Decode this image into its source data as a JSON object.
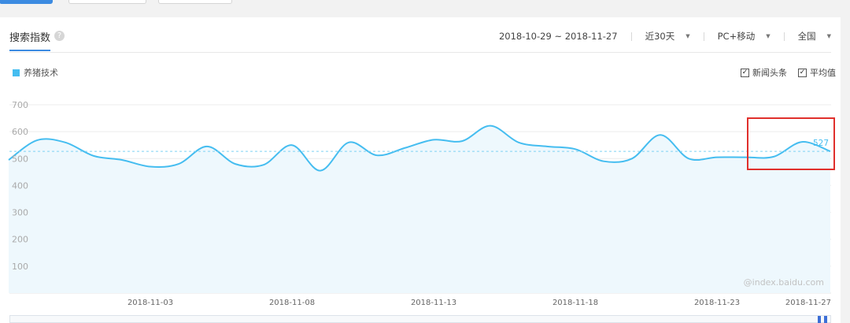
{
  "header": {
    "title": "搜索指数",
    "help_icon_glyph": "?",
    "date_range": "2018-10-29 ~ 2018-11-27",
    "period": "近30天",
    "device": "PC+移动",
    "region": "全国"
  },
  "legend": {
    "label": "养猪技术",
    "color": "#45bdf0"
  },
  "options": [
    {
      "label": "新闻头条",
      "checked": true
    },
    {
      "label": "平均值",
      "checked": true
    }
  ],
  "watermark": "@index.baidu.com",
  "chart_data": {
    "type": "area",
    "series": [
      {
        "name": "养猪技术",
        "values": [
          495,
          568,
          560,
          510,
          495,
          470,
          480,
          545,
          480,
          477,
          550,
          455,
          560,
          512,
          540,
          570,
          565,
          622,
          560,
          545,
          535,
          490,
          500,
          588,
          500,
          505,
          505,
          507,
          562,
          527
        ]
      }
    ],
    "x": [
      "2018-10-29",
      "2018-10-30",
      "2018-10-31",
      "2018-11-01",
      "2018-11-02",
      "2018-11-03",
      "2018-11-04",
      "2018-11-05",
      "2018-11-06",
      "2018-11-07",
      "2018-11-08",
      "2018-11-09",
      "2018-11-10",
      "2018-11-11",
      "2018-11-12",
      "2018-11-13",
      "2018-11-14",
      "2018-11-15",
      "2018-11-16",
      "2018-11-17",
      "2018-11-18",
      "2018-11-19",
      "2018-11-20",
      "2018-11-21",
      "2018-11-22",
      "2018-11-23",
      "2018-11-24",
      "2018-11-25",
      "2018-11-26",
      "2018-11-27"
    ],
    "x_tick_labels": [
      "2018-11-03",
      "2018-11-08",
      "2018-11-13",
      "2018-11-18",
      "2018-11-23",
      "2018-11-27"
    ],
    "y_ticks": [
      100,
      200,
      300,
      400,
      500,
      600,
      700
    ],
    "ylim": [
      0,
      700
    ],
    "average": 527,
    "last_value_label": "527",
    "grid": true,
    "colors": {
      "line": "#45bdf0",
      "area": "#eef8fd",
      "avg": "#7fd2f3",
      "highlight": "#e0302c"
    }
  }
}
